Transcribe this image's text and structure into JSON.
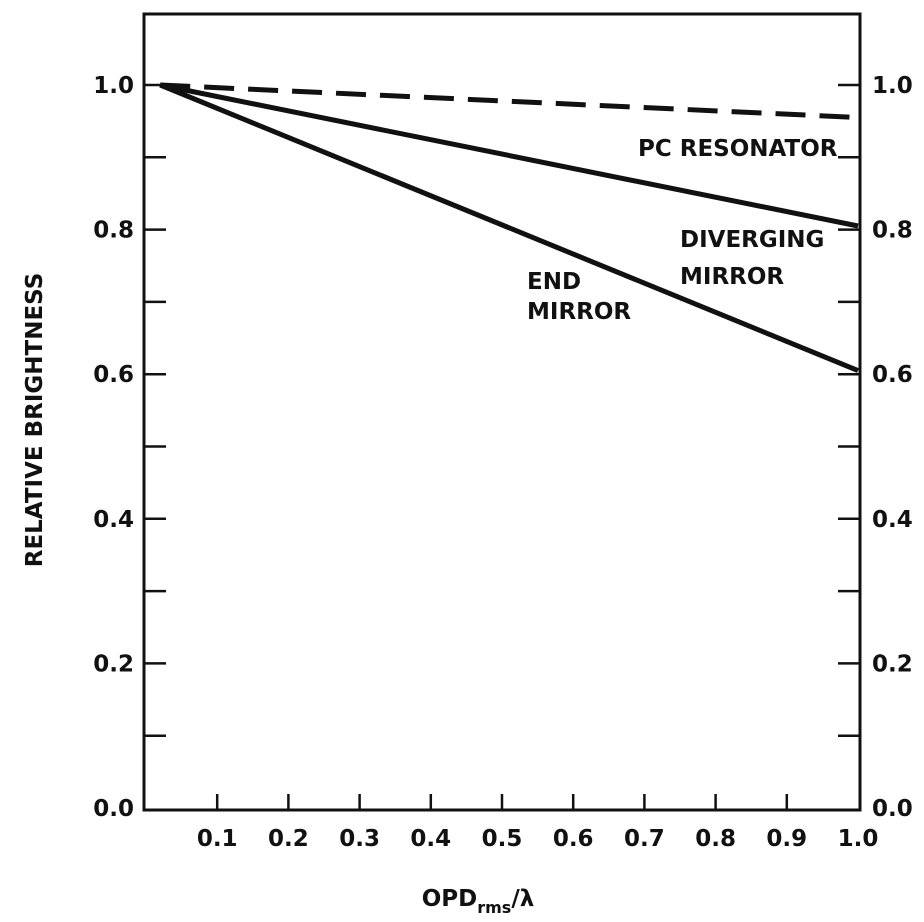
{
  "chart_data": {
    "type": "line",
    "title": "",
    "xlabel": {
      "main": "OPD",
      "subscript": "rms",
      "suffix": "/λ"
    },
    "ylabel": "RELATIVE BRIGHTNESS",
    "xlim": [
      0.0,
      1.0
    ],
    "ylim": [
      0.0,
      1.1
    ],
    "x_ticks": [
      "0.1",
      "0.2",
      "0.3",
      "0.4",
      "0.5",
      "0.6",
      "0.7",
      "0.8",
      "0.9",
      "1.0"
    ],
    "x_tick_values": [
      0.1,
      0.2,
      0.3,
      0.4,
      0.5,
      0.6,
      0.7,
      0.8,
      0.9,
      1.0
    ],
    "y_ticks": [
      "0.0",
      "0.2",
      "0.4",
      "0.6",
      "0.8",
      "1.0"
    ],
    "y_tick_values": [
      0.0,
      0.2,
      0.4,
      0.6,
      0.8,
      1.0
    ],
    "y_minor_ticks": [
      0.1,
      0.3,
      0.5,
      0.7,
      0.9
    ],
    "right_y_ticks": [
      "0.0",
      "0.2",
      "0.4",
      "0.6",
      "0.8",
      "1.0"
    ],
    "grid": false,
    "series": [
      {
        "label_lines": [
          "PC RESONATOR"
        ],
        "style": "dashed",
        "x": [
          0.02,
          1.0
        ],
        "y": [
          1.0,
          0.955
        ]
      },
      {
        "label_lines": [
          "DIVERGING",
          "MIRROR"
        ],
        "style": "solid",
        "x": [
          0.02,
          1.0
        ],
        "y": [
          1.0,
          0.805
        ]
      },
      {
        "label_lines": [
          "END",
          "MIRROR"
        ],
        "style": "solid",
        "x": [
          0.02,
          1.0
        ],
        "y": [
          1.0,
          0.605
        ]
      }
    ],
    "colors": {
      "line": "#111111",
      "frame": "#111111",
      "background": "#ffffff"
    }
  }
}
